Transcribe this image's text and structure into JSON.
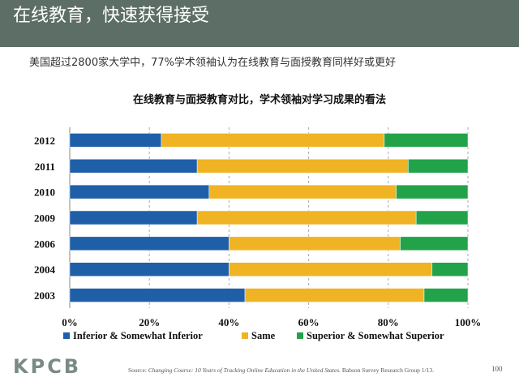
{
  "header": {
    "title": "在线教育，快速获得接受"
  },
  "subtitle": "美国超过2800家大学中，77%学术领袖认为在线教育与面授教育同样好或更好",
  "chart_data": {
    "type": "bar",
    "orientation": "horizontal",
    "stacked": true,
    "percent_stacked": true,
    "title": "在线教育与面授教育对比，学术领袖对学习成果的看法",
    "categories": [
      "2012",
      "2011",
      "2010",
      "2009",
      "2006",
      "2004",
      "2003"
    ],
    "series": [
      {
        "name": "Inferior  & Somewhat Inferior",
        "color": "#1f5fa8",
        "values": [
          23,
          32,
          35,
          32,
          40,
          40,
          44
        ]
      },
      {
        "name": "Same",
        "color": "#f0b323",
        "values": [
          56,
          53,
          47,
          55,
          43,
          51,
          45
        ]
      },
      {
        "name": "Superior  & Somewhat Superior",
        "color": "#22a34a",
        "values": [
          21,
          15,
          18,
          13,
          17,
          9,
          11
        ]
      }
    ],
    "xlim": [
      0,
      100
    ],
    "xticks": [
      "0%",
      "20%",
      "40%",
      "60%",
      "80%",
      "100%"
    ],
    "grid": "vertical-dashed",
    "legend_position": "bottom"
  },
  "footer": {
    "logo": "KPCB",
    "source_label": "Source:",
    "source_italic": "Changing Course: 10 Years of Tracking Online Education in the United States.",
    "source_rest": " Babson Survey Research Group 1/13.",
    "page_number": "100"
  }
}
